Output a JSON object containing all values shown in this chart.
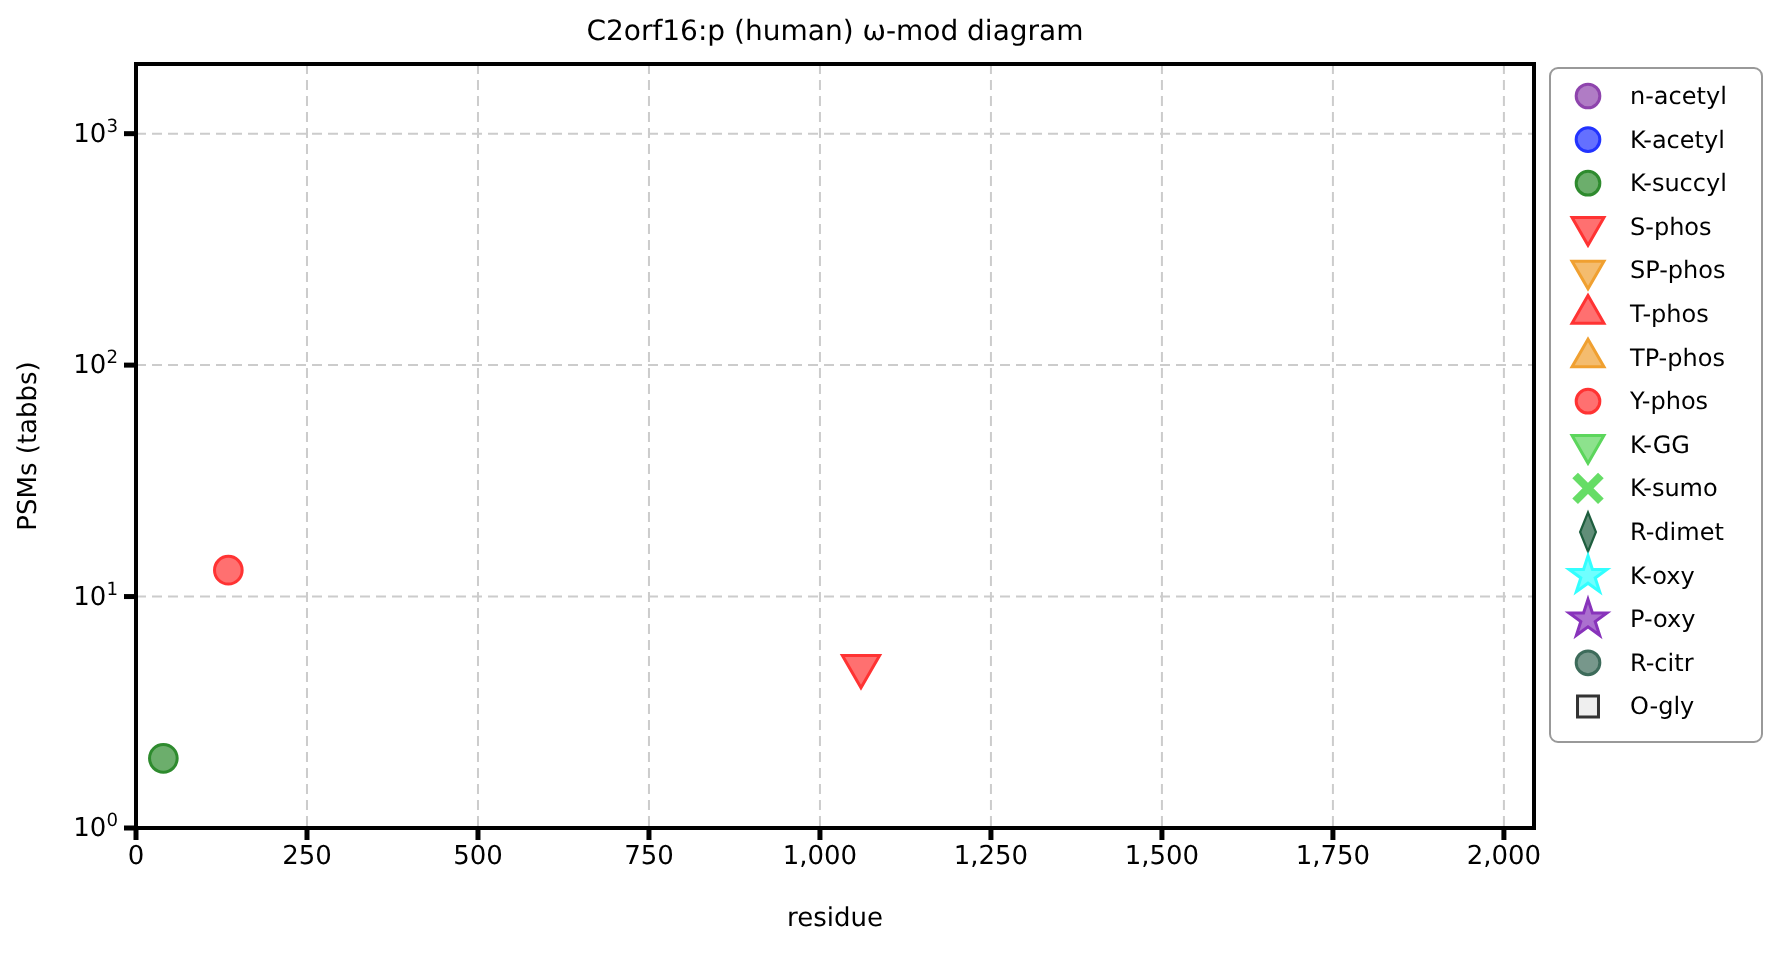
{
  "chart_data": {
    "type": "scatter",
    "title": "C2orf16:p (human) ω-mod diagram",
    "xlabel": "residue",
    "ylabel": "PSMs (tabbs)",
    "log": "y",
    "grid": true,
    "legend": "right",
    "xlim": [
      0,
      2044
    ],
    "ylim": [
      1,
      2000
    ],
    "xticks": [
      0,
      250,
      500,
      750,
      {
        "value": 1000,
        "label": "1,000"
      },
      {
        "value": 1250,
        "label": "1,250"
      },
      {
        "value": 1500,
        "label": "1,500"
      },
      {
        "value": 1750,
        "label": "1,750"
      },
      {
        "value": 2000,
        "label": "2,000"
      }
    ],
    "yticks": [
      {
        "value": 1,
        "label": "10$^{0}$"
      },
      {
        "value": 10,
        "label": "10$^{1}$"
      },
      {
        "value": 100,
        "label": "10$^{2}$"
      },
      {
        "value": 1000,
        "label": "10$^{3}$"
      }
    ],
    "series": [
      {
        "name": "n-acetyl",
        "color": "#8e44ad",
        "marker": "circle"
      },
      {
        "name": "K-acetyl",
        "color": "#2233ff",
        "marker": "circle"
      },
      {
        "name": "K-succyl",
        "color": "#2e8b2e",
        "marker": "circle",
        "x": [
          40
        ],
        "values": [
          2
        ]
      },
      {
        "name": "S-phos",
        "color": "#ff3333",
        "marker": "triangle-down",
        "x": [
          1060
        ],
        "values": [
          5
        ]
      },
      {
        "name": "SP-phos",
        "color": "#f0a030",
        "marker": "triangle-down"
      },
      {
        "name": "T-phos",
        "color": "#ff3333",
        "marker": "triangle"
      },
      {
        "name": "TP-phos",
        "color": "#f0a030",
        "marker": "triangle"
      },
      {
        "name": "Y-phos",
        "color": "#ff3333",
        "marker": "circle",
        "x": [
          135
        ],
        "values": [
          13
        ]
      },
      {
        "name": "K-GG",
        "color": "#5cd65c",
        "marker": "triangle-down"
      },
      {
        "name": "K-sumo",
        "color": "#66dd66",
        "marker": "cross"
      },
      {
        "name": "R-dimet",
        "color": "#1e5e3e",
        "marker": "diamond"
      },
      {
        "name": "K-oxy",
        "color": "#33ffff",
        "marker": "star"
      },
      {
        "name": "P-oxy",
        "color": "#8833bb",
        "marker": "star"
      },
      {
        "name": "R-citr",
        "color": "#3d6b5a",
        "marker": "circle"
      },
      {
        "name": "O-gly",
        "color": "#e8e8e8",
        "marker": "square"
      }
    ]
  }
}
